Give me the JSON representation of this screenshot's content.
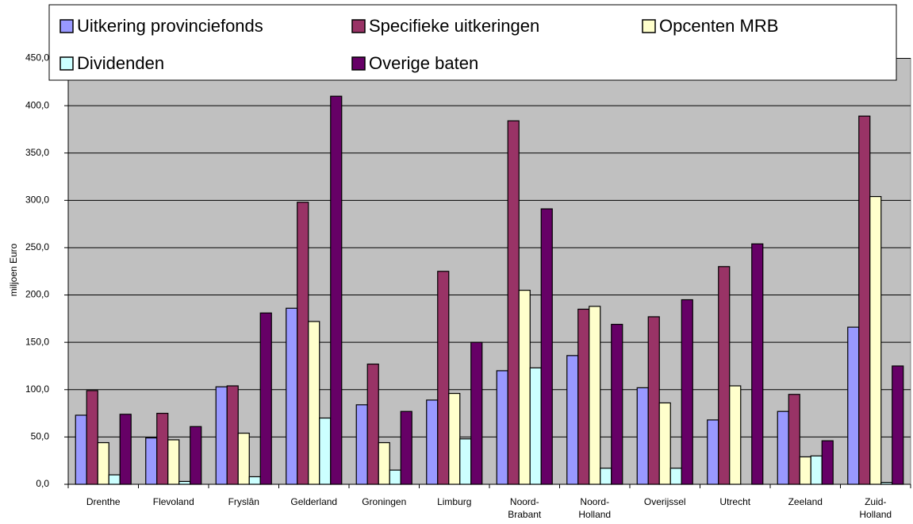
{
  "chart_data": {
    "type": "bar",
    "y_label": "miljoen Euro",
    "categories": [
      "Drenthe",
      "Flevoland",
      "Fryslân",
      "Gelderland",
      "Groningen",
      "Limburg",
      "Noord-Brabant",
      "Noord-Holland",
      "Overijssel",
      "Utrecht",
      "Zeeland",
      "Zuid-Holland"
    ],
    "series": [
      {
        "name": "Uitkering provinciefonds",
        "color": "#9999ff",
        "values": [
          73,
          49,
          103,
          186,
          84,
          89,
          120,
          136,
          102,
          68,
          77,
          166
        ]
      },
      {
        "name": "Specifieke uitkeringen",
        "color": "#993366",
        "values": [
          99,
          75,
          104,
          298,
          127,
          225,
          384,
          185,
          177,
          230,
          95,
          389
        ]
      },
      {
        "name": "Opcenten MRB",
        "color": "#ffffcc",
        "values": [
          44,
          47,
          54,
          172,
          44,
          96,
          205,
          188,
          86,
          104,
          29,
          304
        ]
      },
      {
        "name": "Dividenden",
        "color": "#ccffff",
        "values": [
          10,
          3,
          8,
          70,
          15,
          48,
          123,
          17,
          17,
          0,
          30,
          2
        ]
      },
      {
        "name": "Overige baten",
        "color": "#660066",
        "values": [
          74,
          61,
          181,
          410,
          77,
          150,
          291,
          169,
          195,
          254,
          46,
          125
        ]
      }
    ],
    "ylim": [
      0,
      450
    ],
    "yticks": [
      {
        "value": 0,
        "label": "0,0"
      },
      {
        "value": 50,
        "label": "50,0"
      },
      {
        "value": 100,
        "label": "100,0"
      },
      {
        "value": 150,
        "label": "150,0"
      },
      {
        "value": 200,
        "label": "200,0"
      },
      {
        "value": 250,
        "label": "250,0"
      },
      {
        "value": 300,
        "label": "300,0"
      },
      {
        "value": 350,
        "label": "350,0"
      },
      {
        "value": 400,
        "label": "400,0"
      },
      {
        "value": 450,
        "label": "450,0"
      }
    ],
    "grid": true,
    "plot_background": "#c0c0c0",
    "legend": "top"
  }
}
